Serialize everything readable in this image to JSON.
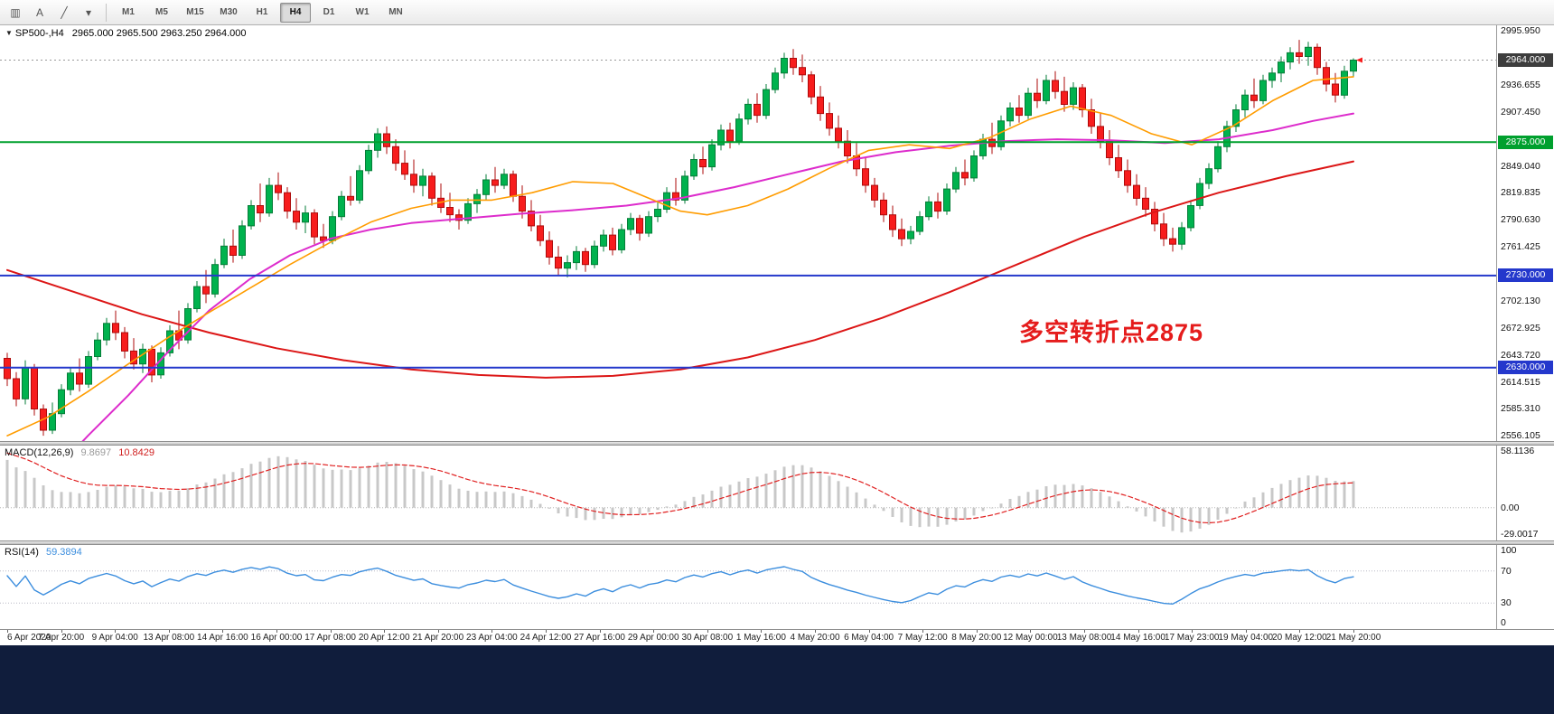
{
  "window": {
    "taskbar_color": "#101d3c"
  },
  "toolbar": {
    "icons": [
      {
        "name": "charts-grid-icon",
        "glyph": "▥"
      },
      {
        "name": "text-tool-icon",
        "glyph": "A"
      },
      {
        "name": "trendline-tool-icon",
        "glyph": "╱"
      },
      {
        "name": "tools-dropdown-caret-icon",
        "glyph": "▾"
      }
    ],
    "timeframes": [
      "M1",
      "M5",
      "M15",
      "M30",
      "H1",
      "H4",
      "D1",
      "W1",
      "MN"
    ],
    "active_timeframe": "H4"
  },
  "header": {
    "symbol": "SP500-,H4",
    "ohlc": "2965.000 2965.500 2963.250 2964.000"
  },
  "annotation": {
    "text": "多空转折点2875",
    "color": "#e51c1c"
  },
  "price_scale": {
    "labels": [
      {
        "text": "2995.950",
        "type": "normal"
      },
      {
        "text": "2964.000",
        "type": "current"
      },
      {
        "text": "2936.655",
        "type": "normal"
      },
      {
        "text": "2907.450",
        "type": "normal"
      },
      {
        "text": "2875.000",
        "type": "green"
      },
      {
        "text": "2849.040",
        "type": "normal"
      },
      {
        "text": "2819.835",
        "type": "normal"
      },
      {
        "text": "2790.630",
        "type": "normal"
      },
      {
        "text": "2761.425",
        "type": "normal"
      },
      {
        "text": "2730.000",
        "type": "blue"
      },
      {
        "text": "2702.130",
        "type": "normal"
      },
      {
        "text": "2672.925",
        "type": "normal"
      },
      {
        "text": "2643.720",
        "type": "normal"
      },
      {
        "text": "2630.000",
        "type": "blue"
      },
      {
        "text": "2614.515",
        "type": "normal"
      },
      {
        "text": "2585.310",
        "type": "normal"
      },
      {
        "text": "2556.105",
        "type": "normal"
      }
    ]
  },
  "macd": {
    "label": "MACD(12,26,9)",
    "value_main": "9.8697",
    "value_signal": "10.8429",
    "scale": [
      "58.1136",
      "0.00",
      "-29.0017"
    ],
    "range": [
      -29.0017,
      58.1136
    ]
  },
  "rsi": {
    "label": "RSI(14)",
    "value": "59.3894",
    "scale": [
      "100",
      "70",
      "30",
      "0"
    ],
    "levels": [
      70,
      30
    ],
    "range": [
      0,
      100
    ]
  },
  "colors": {
    "up": "#00b24e",
    "up_edge": "#067d38",
    "down": "#f71d1d",
    "down_edge": "#ae0b0b",
    "ma_orange": "#ff9c00",
    "ma_magenta": "#dd2ccc",
    "ma_red": "#dc1616",
    "line_green": "#00a02e",
    "line_blue": "#2438cc",
    "badge_current_bg": "#3d3d3d",
    "macd_hist": "#c8c8c8",
    "macd_signal": "#e02020",
    "macd_value_main": "#9a9a9a",
    "macd_value_signal": "#d02020",
    "rsi_line": "#3c8ede",
    "rsi_value": "#3c8ede"
  },
  "chart_data": {
    "type": "candlestick",
    "symbol": "SP500-",
    "timeframe": "H4",
    "title": "SP500-,H4 2965.000 2965.500 2963.250 2964.000",
    "price_range": [
      2556.105,
      2995.95
    ],
    "levels": {
      "current_price": 2964.0,
      "resistance_green": 2875.0,
      "support_blue_upper": 2730.0,
      "support_blue_lower": 2630.0
    },
    "time_labels": [
      "6 Apr 2020",
      "7 Apr 20:00",
      "9 Apr 04:00",
      "13 Apr 08:00",
      "14 Apr 16:00",
      "16 Apr 00:00",
      "17 Apr 08:00",
      "20 Apr 12:00",
      "21 Apr 20:00",
      "23 Apr 04:00",
      "24 Apr 12:00",
      "27 Apr 16:00",
      "29 Apr 00:00",
      "30 Apr 08:00",
      "1 May 16:00",
      "4 May 20:00",
      "6 May 04:00",
      "7 May 12:00",
      "8 May 20:00",
      "12 May 00:00",
      "13 May 08:00",
      "14 May 16:00",
      "17 May 23:00",
      "19 May 04:00",
      "20 May 12:00",
      "21 May 20:00"
    ],
    "candles": [
      [
        2640,
        2646,
        2610,
        2618
      ],
      [
        2618,
        2625,
        2588,
        2596
      ],
      [
        2596,
        2638,
        2590,
        2630
      ],
      [
        2630,
        2634,
        2578,
        2585
      ],
      [
        2585,
        2590,
        2556,
        2562
      ],
      [
        2562,
        2592,
        2558,
        2580
      ],
      [
        2580,
        2612,
        2576,
        2606
      ],
      [
        2606,
        2630,
        2600,
        2624
      ],
      [
        2624,
        2640,
        2604,
        2612
      ],
      [
        2612,
        2648,
        2608,
        2642
      ],
      [
        2642,
        2668,
        2638,
        2660
      ],
      [
        2660,
        2684,
        2654,
        2678
      ],
      [
        2678,
        2692,
        2660,
        2668
      ],
      [
        2668,
        2674,
        2640,
        2648
      ],
      [
        2648,
        2662,
        2628,
        2634
      ],
      [
        2634,
        2656,
        2624,
        2650
      ],
      [
        2650,
        2654,
        2614,
        2622
      ],
      [
        2622,
        2652,
        2618,
        2646
      ],
      [
        2646,
        2676,
        2642,
        2670
      ],
      [
        2670,
        2692,
        2650,
        2660
      ],
      [
        2660,
        2700,
        2656,
        2694
      ],
      [
        2694,
        2724,
        2690,
        2718
      ],
      [
        2718,
        2736,
        2700,
        2710
      ],
      [
        2710,
        2748,
        2706,
        2742
      ],
      [
        2742,
        2770,
        2738,
        2762
      ],
      [
        2762,
        2780,
        2744,
        2752
      ],
      [
        2752,
        2790,
        2748,
        2784
      ],
      [
        2784,
        2812,
        2780,
        2806
      ],
      [
        2806,
        2830,
        2788,
        2798
      ],
      [
        2798,
        2836,
        2794,
        2828
      ],
      [
        2828,
        2842,
        2812,
        2820
      ],
      [
        2820,
        2826,
        2792,
        2800
      ],
      [
        2800,
        2814,
        2780,
        2788
      ],
      [
        2788,
        2806,
        2776,
        2798
      ],
      [
        2798,
        2802,
        2764,
        2772
      ],
      [
        2772,
        2786,
        2760,
        2768
      ],
      [
        2768,
        2800,
        2764,
        2794
      ],
      [
        2794,
        2822,
        2790,
        2816
      ],
      [
        2816,
        2838,
        2806,
        2812
      ],
      [
        2812,
        2850,
        2808,
        2844
      ],
      [
        2844,
        2872,
        2840,
        2866
      ],
      [
        2866,
        2890,
        2858,
        2884
      ],
      [
        2884,
        2892,
        2862,
        2870
      ],
      [
        2870,
        2878,
        2844,
        2852
      ],
      [
        2852,
        2866,
        2834,
        2840
      ],
      [
        2840,
        2856,
        2820,
        2828
      ],
      [
        2828,
        2846,
        2816,
        2838
      ],
      [
        2838,
        2842,
        2806,
        2814
      ],
      [
        2814,
        2830,
        2798,
        2804
      ],
      [
        2804,
        2820,
        2788,
        2796
      ],
      [
        2796,
        2802,
        2780,
        2790
      ],
      [
        2790,
        2814,
        2786,
        2808
      ],
      [
        2808,
        2824,
        2798,
        2818
      ],
      [
        2818,
        2840,
        2812,
        2834
      ],
      [
        2834,
        2848,
        2820,
        2828
      ],
      [
        2828,
        2846,
        2824,
        2840
      ],
      [
        2840,
        2844,
        2810,
        2816
      ],
      [
        2816,
        2828,
        2792,
        2800
      ],
      [
        2800,
        2812,
        2778,
        2784
      ],
      [
        2784,
        2796,
        2762,
        2768
      ],
      [
        2768,
        2778,
        2742,
        2750
      ],
      [
        2750,
        2762,
        2730,
        2738
      ],
      [
        2738,
        2752,
        2728,
        2744
      ],
      [
        2744,
        2762,
        2736,
        2756
      ],
      [
        2756,
        2760,
        2734,
        2742
      ],
      [
        2742,
        2768,
        2738,
        2762
      ],
      [
        2762,
        2780,
        2756,
        2774
      ],
      [
        2774,
        2782,
        2752,
        2758
      ],
      [
        2758,
        2786,
        2754,
        2780
      ],
      [
        2780,
        2798,
        2774,
        2792
      ],
      [
        2792,
        2796,
        2768,
        2776
      ],
      [
        2776,
        2800,
        2772,
        2794
      ],
      [
        2794,
        2810,
        2788,
        2802
      ],
      [
        2802,
        2826,
        2798,
        2820
      ],
      [
        2820,
        2836,
        2806,
        2812
      ],
      [
        2812,
        2844,
        2808,
        2838
      ],
      [
        2838,
        2862,
        2834,
        2856
      ],
      [
        2856,
        2870,
        2840,
        2848
      ],
      [
        2848,
        2878,
        2844,
        2872
      ],
      [
        2872,
        2894,
        2866,
        2888
      ],
      [
        2888,
        2896,
        2868,
        2876
      ],
      [
        2876,
        2906,
        2872,
        2900
      ],
      [
        2900,
        2922,
        2894,
        2916
      ],
      [
        2916,
        2928,
        2896,
        2904
      ],
      [
        2904,
        2938,
        2900,
        2932
      ],
      [
        2932,
        2956,
        2928,
        2950
      ],
      [
        2950,
        2972,
        2944,
        2966
      ],
      [
        2966,
        2976,
        2948,
        2956
      ],
      [
        2956,
        2970,
        2940,
        2948
      ],
      [
        2948,
        2952,
        2916,
        2924
      ],
      [
        2924,
        2936,
        2898,
        2906
      ],
      [
        2906,
        2918,
        2882,
        2890
      ],
      [
        2890,
        2904,
        2868,
        2876
      ],
      [
        2876,
        2888,
        2852,
        2860
      ],
      [
        2860,
        2874,
        2838,
        2846
      ],
      [
        2846,
        2858,
        2820,
        2828
      ],
      [
        2828,
        2836,
        2804,
        2812
      ],
      [
        2812,
        2820,
        2788,
        2796
      ],
      [
        2796,
        2806,
        2772,
        2780
      ],
      [
        2780,
        2792,
        2762,
        2770
      ],
      [
        2770,
        2784,
        2764,
        2778
      ],
      [
        2778,
        2800,
        2774,
        2794
      ],
      [
        2794,
        2816,
        2790,
        2810
      ],
      [
        2810,
        2820,
        2792,
        2800
      ],
      [
        2800,
        2830,
        2796,
        2824
      ],
      [
        2824,
        2848,
        2820,
        2842
      ],
      [
        2842,
        2856,
        2828,
        2836
      ],
      [
        2836,
        2866,
        2832,
        2860
      ],
      [
        2860,
        2884,
        2856,
        2878
      ],
      [
        2878,
        2896,
        2862,
        2870
      ],
      [
        2870,
        2904,
        2866,
        2898
      ],
      [
        2898,
        2918,
        2892,
        2912
      ],
      [
        2912,
        2926,
        2896,
        2904
      ],
      [
        2904,
        2934,
        2900,
        2928
      ],
      [
        2928,
        2944,
        2912,
        2920
      ],
      [
        2920,
        2948,
        2916,
        2942
      ],
      [
        2942,
        2952,
        2922,
        2930
      ],
      [
        2930,
        2946,
        2908,
        2916
      ],
      [
        2916,
        2940,
        2910,
        2934
      ],
      [
        2934,
        2938,
        2902,
        2910
      ],
      [
        2910,
        2922,
        2884,
        2892
      ],
      [
        2892,
        2906,
        2868,
        2876
      ],
      [
        2876,
        2888,
        2850,
        2858
      ],
      [
        2858,
        2872,
        2836,
        2844
      ],
      [
        2844,
        2856,
        2820,
        2828
      ],
      [
        2828,
        2840,
        2806,
        2814
      ],
      [
        2814,
        2826,
        2794,
        2802
      ],
      [
        2802,
        2810,
        2778,
        2786
      ],
      [
        2786,
        2798,
        2762,
        2770
      ],
      [
        2770,
        2782,
        2756,
        2764
      ],
      [
        2764,
        2788,
        2758,
        2782
      ],
      [
        2782,
        2812,
        2778,
        2806
      ],
      [
        2806,
        2836,
        2802,
        2830
      ],
      [
        2830,
        2852,
        2824,
        2846
      ],
      [
        2846,
        2876,
        2842,
        2870
      ],
      [
        2870,
        2898,
        2864,
        2892
      ],
      [
        2892,
        2916,
        2886,
        2910
      ],
      [
        2910,
        2932,
        2902,
        2926
      ],
      [
        2926,
        2944,
        2912,
        2920
      ],
      [
        2920,
        2948,
        2916,
        2942
      ],
      [
        2942,
        2956,
        2934,
        2950
      ],
      [
        2950,
        2968,
        2940,
        2962
      ],
      [
        2962,
        2978,
        2954,
        2972
      ],
      [
        2972,
        2986,
        2960,
        2968
      ],
      [
        2968,
        2984,
        2958,
        2978
      ],
      [
        2978,
        2982,
        2948,
        2956
      ],
      [
        2956,
        2962,
        2930,
        2938
      ],
      [
        2938,
        2950,
        2918,
        2926
      ],
      [
        2926,
        2958,
        2922,
        2952
      ],
      [
        2952,
        2966,
        2946,
        2964
      ]
    ],
    "moving_averages": {
      "orange_fast": [
        [
          0,
          2556
        ],
        [
          0.03,
          2576
        ],
        [
          0.06,
          2604
        ],
        [
          0.09,
          2634
        ],
        [
          0.12,
          2663
        ],
        [
          0.15,
          2690
        ],
        [
          0.18,
          2716
        ],
        [
          0.21,
          2742
        ],
        [
          0.24,
          2766
        ],
        [
          0.27,
          2788
        ],
        [
          0.3,
          2803
        ],
        [
          0.33,
          2812
        ],
        [
          0.36,
          2812
        ],
        [
          0.39,
          2820
        ],
        [
          0.42,
          2832
        ],
        [
          0.45,
          2830
        ],
        [
          0.48,
          2812
        ],
        [
          0.5,
          2800
        ],
        [
          0.52,
          2796
        ],
        [
          0.55,
          2806
        ],
        [
          0.58,
          2824
        ],
        [
          0.61,
          2846
        ],
        [
          0.64,
          2866
        ],
        [
          0.67,
          2872
        ],
        [
          0.7,
          2868
        ],
        [
          0.73,
          2880
        ],
        [
          0.76,
          2900
        ],
        [
          0.79,
          2914
        ],
        [
          0.82,
          2904
        ],
        [
          0.85,
          2884
        ],
        [
          0.88,
          2872
        ],
        [
          0.91,
          2892
        ],
        [
          0.94,
          2920
        ],
        [
          0.97,
          2942
        ],
        [
          1,
          2946
        ]
      ],
      "magenta_mid": [
        [
          0,
          2468
        ],
        [
          0.03,
          2510
        ],
        [
          0.06,
          2556
        ],
        [
          0.09,
          2600
        ],
        [
          0.12,
          2648
        ],
        [
          0.15,
          2692
        ],
        [
          0.18,
          2726
        ],
        [
          0.21,
          2752
        ],
        [
          0.24,
          2770
        ],
        [
          0.27,
          2780
        ],
        [
          0.3,
          2787
        ],
        [
          0.34,
          2792
        ],
        [
          0.38,
          2797
        ],
        [
          0.42,
          2801
        ],
        [
          0.46,
          2806
        ],
        [
          0.5,
          2814
        ],
        [
          0.54,
          2826
        ],
        [
          0.58,
          2840
        ],
        [
          0.62,
          2854
        ],
        [
          0.66,
          2864
        ],
        [
          0.7,
          2871
        ],
        [
          0.74,
          2876
        ],
        [
          0.78,
          2878
        ],
        [
          0.82,
          2877
        ],
        [
          0.86,
          2874
        ],
        [
          0.9,
          2878
        ],
        [
          0.94,
          2888
        ],
        [
          0.97,
          2898
        ],
        [
          1,
          2906
        ]
      ],
      "red_slow": [
        [
          0,
          2736
        ],
        [
          0.05,
          2712
        ],
        [
          0.1,
          2688
        ],
        [
          0.15,
          2668
        ],
        [
          0.2,
          2651
        ],
        [
          0.25,
          2638
        ],
        [
          0.3,
          2628
        ],
        [
          0.35,
          2622
        ],
        [
          0.4,
          2619
        ],
        [
          0.45,
          2621
        ],
        [
          0.5,
          2628
        ],
        [
          0.55,
          2641
        ],
        [
          0.6,
          2660
        ],
        [
          0.65,
          2684
        ],
        [
          0.7,
          2712
        ],
        [
          0.75,
          2742
        ],
        [
          0.8,
          2772
        ],
        [
          0.85,
          2798
        ],
        [
          0.9,
          2820
        ],
        [
          0.95,
          2838
        ],
        [
          1,
          2854
        ]
      ]
    },
    "indicators": {
      "macd": {
        "params": [
          12,
          26,
          9
        ],
        "current_main": 9.8697,
        "current_signal": 10.8429,
        "display_range": [
          -29.0017,
          58.1136
        ]
      },
      "rsi": {
        "params": [
          14
        ],
        "current": 59.3894,
        "display_range": [
          0,
          100
        ],
        "levels": [
          30,
          70
        ]
      }
    }
  }
}
